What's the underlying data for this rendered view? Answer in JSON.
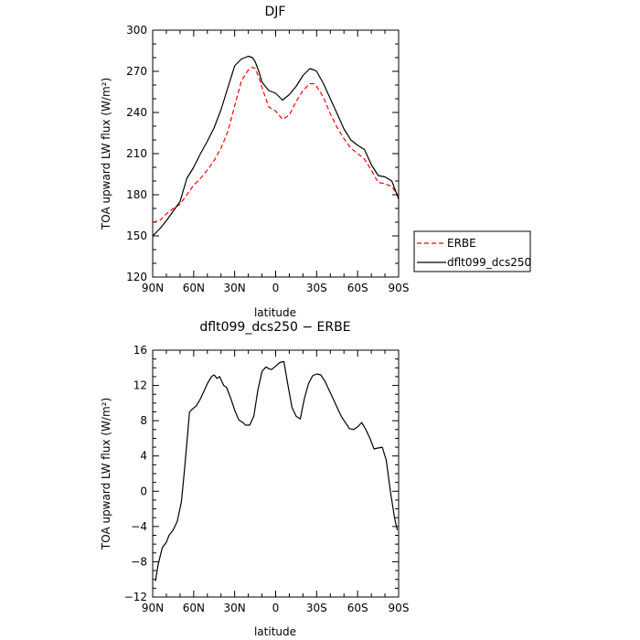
{
  "chart_data": [
    {
      "type": "line",
      "title": "DJF",
      "xlabel": "latitude",
      "ylabel": "TOA upward LW flux (W/m²)",
      "xticks": [
        "90N",
        "60N",
        "30N",
        "0",
        "30S",
        "60S",
        "90S"
      ],
      "xlim": [
        90,
        -90
      ],
      "ylim": [
        120,
        300
      ],
      "yticks": [
        120,
        150,
        180,
        210,
        240,
        270,
        300
      ],
      "legend": "right",
      "series": [
        {
          "name": "ERBE",
          "color": "#ff0000",
          "style": "dashed",
          "x": [
            90,
            85,
            80,
            75,
            70,
            65,
            60,
            55,
            50,
            45,
            40,
            35,
            30,
            25,
            20,
            17,
            15,
            12,
            10,
            5,
            0,
            -5,
            -10,
            -15,
            -20,
            -25,
            -28,
            -30,
            -35,
            -40,
            -45,
            -50,
            -55,
            -60,
            -65,
            -70,
            -75,
            -80,
            -85,
            -90
          ],
          "y": [
            160,
            161,
            166,
            170,
            173,
            180,
            187,
            192,
            198,
            205,
            214,
            226,
            245,
            263,
            271,
            273,
            272,
            265,
            258,
            244,
            241,
            235,
            238,
            248,
            256,
            261,
            261,
            259,
            251,
            239,
            229,
            221,
            214,
            210,
            206,
            198,
            189,
            188,
            186,
            179
          ]
        },
        {
          "name": "dflt099_dcs250",
          "color": "#000000",
          "style": "solid",
          "x": [
            90,
            85,
            80,
            75,
            70,
            65,
            60,
            55,
            50,
            45,
            40,
            35,
            30,
            25,
            20,
            17,
            15,
            12,
            10,
            5,
            0,
            -5,
            -10,
            -15,
            -20,
            -25,
            -28,
            -30,
            -35,
            -40,
            -45,
            -50,
            -55,
            -60,
            -65,
            -70,
            -75,
            -80,
            -85,
            -90
          ],
          "y": [
            150,
            155,
            161,
            168,
            175,
            192,
            200,
            210,
            219,
            229,
            242,
            258,
            274,
            279,
            281,
            280,
            277,
            269,
            262,
            256,
            254,
            249,
            253,
            259,
            267,
            272,
            271,
            270,
            261,
            250,
            239,
            228,
            220,
            216,
            213,
            202,
            194,
            193,
            190,
            177
          ]
        }
      ]
    },
    {
      "type": "line",
      "title": "dflt099_dcs250 − ERBE",
      "xlabel": "latitude",
      "ylabel": "TOA upward LW flux (W/m²)",
      "xticks": [
        "90N",
        "60N",
        "30N",
        "0",
        "30S",
        "60S",
        "90S"
      ],
      "xlim": [
        90,
        -90
      ],
      "ylim": [
        -12,
        16
      ],
      "yticks": [
        -12,
        -8,
        -4,
        0,
        4,
        8,
        12,
        16
      ],
      "series": [
        {
          "color": "#000000",
          "style": "solid",
          "x": [
            88,
            86,
            83,
            80,
            78,
            75,
            72,
            69,
            67,
            65,
            63,
            61,
            58,
            55,
            52,
            50,
            47,
            45,
            43,
            41,
            38,
            36,
            33,
            30,
            27,
            24,
            22,
            19,
            16,
            13,
            10,
            7,
            5,
            3,
            0,
            -3,
            -6,
            -9,
            -12,
            -15,
            -18,
            -21,
            -24,
            -27,
            -30,
            -33,
            -36,
            -39,
            -42,
            -45,
            -48,
            -51,
            -54,
            -57,
            -60,
            -63,
            -66,
            -69,
            -72,
            -75,
            -78,
            -81,
            -84,
            -87,
            -89
          ],
          "y": [
            -10.2,
            -8.3,
            -6.4,
            -5.8,
            -5.0,
            -4.4,
            -3.4,
            -1.2,
            2.0,
            5.5,
            9.0,
            9.3,
            9.7,
            10.5,
            11.5,
            12.2,
            13.0,
            13.2,
            12.8,
            13.0,
            12.0,
            11.8,
            10.6,
            9.2,
            8.1,
            7.8,
            7.5,
            7.5,
            8.5,
            11.5,
            13.6,
            14.1,
            13.9,
            13.8,
            14.2,
            14.6,
            14.7,
            12.0,
            9.5,
            8.5,
            8.2,
            10.5,
            12.2,
            13.1,
            13.3,
            13.2,
            12.5,
            11.5,
            10.5,
            9.5,
            8.5,
            7.8,
            7.1,
            7.0,
            7.3,
            7.8,
            7.0,
            6.0,
            4.8,
            4.9,
            5.0,
            3.5,
            0.0,
            -3.0,
            -4.4
          ]
        }
      ]
    }
  ]
}
